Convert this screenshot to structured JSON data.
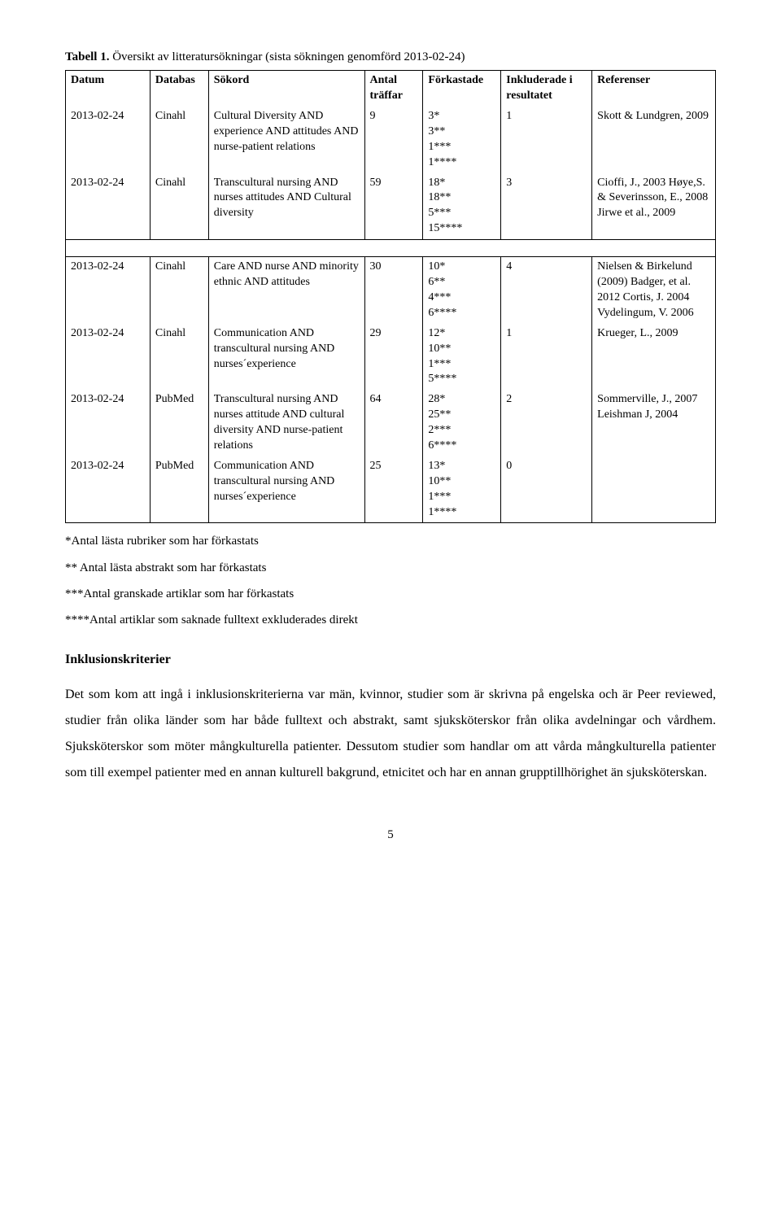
{
  "tableTitle": {
    "bold": "Tabell 1.",
    "rest": " Översikt av litteratursökningar (sista sökningen genomförd 2013-02-24)"
  },
  "headers": {
    "date": "Datum",
    "db": "Databas",
    "terms": "Sökord",
    "hits": "Antal träffar",
    "rejected": "Förkastade",
    "included": "Inkluderade i resultatet",
    "refs": "Referenser"
  },
  "rows": [
    {
      "date": "2013-02-24",
      "db": "Cinahl",
      "terms": "Cultural Diversity AND experience AND attitudes AND nurse-patient relations",
      "hits": "9",
      "rejected": [
        "3*",
        "3**",
        "1***",
        "1****"
      ],
      "included": "1",
      "refs": "Skott & Lundgren, 2009"
    },
    {
      "date": "2013-02-24",
      "db": "Cinahl",
      "terms": "Transcultural nursing AND nurses attitudes AND Cultural diversity",
      "hits": "59",
      "rejected": [
        "18*",
        "18**",
        "5***",
        "15****"
      ],
      "included": "3",
      "refs": "Cioffi, J., 2003 Høye,S. & Severinsson, E., 2008 Jirwe et al., 2009"
    },
    {
      "date": "2013-02-24",
      "db": "Cinahl",
      "terms": "Care AND nurse AND minority ethnic AND attitudes",
      "hits": "30",
      "rejected": [
        "10*",
        "6**",
        "4***",
        "6****"
      ],
      "included": "4",
      "refs": "Nielsen & Birkelund (2009) Badger, et al. 2012 Cortis, J. 2004 Vydelingum, V. 2006"
    },
    {
      "date": "2013-02-24",
      "db": "Cinahl",
      "terms": "Communication AND transcultural nursing AND nurses´experience",
      "hits": "29",
      "rejected": [
        "12*",
        "10**",
        "1***",
        "5****"
      ],
      "included": "1",
      "refs": "Krueger, L., 2009"
    },
    {
      "date": "2013-02-24",
      "db": "PubMed",
      "terms": "Transcultural nursing AND nurses attitude AND cultural diversity AND nurse-patient relations",
      "hits": "64",
      "rejected": [
        "28*",
        "25**",
        "2***",
        "6****"
      ],
      "included": "2",
      "refs": "Sommerville, J., 2007 Leishman J, 2004"
    },
    {
      "date": "2013-02-24",
      "db": "PubMed",
      "terms": "Communication AND transcultural nursing AND nurses´experience",
      "hits": "25",
      "rejected": [
        "13*",
        "10**",
        "1***",
        "1****"
      ],
      "included": "0",
      "refs": ""
    }
  ],
  "footnotes": {
    "f1": "*Antal lästa rubriker som har förkastats",
    "f2": "** Antal lästa abstrakt som har förkastats",
    "f3": "***Antal granskade artiklar som har förkastats",
    "f4": "****Antal artiklar som saknade fulltext exkluderades direkt"
  },
  "sectionHeading": "Inklusionskriterier",
  "bodyText": "Det som kom att ingå i inklusionskriterierna var män, kvinnor, studier som är skrivna på engelska och är Peer reviewed, studier från olika länder som har både fulltext och abstrakt, samt sjuksköterskor från olika avdelningar och vårdhem. Sjuksköterskor som möter mångkulturella patienter. Dessutom studier som handlar om att vårda mångkulturella patienter som till exempel patienter med en annan kulturell bakgrund, etnicitet och har en annan grupptillhörighet än sjuksköterskan.",
  "pageNumber": "5"
}
